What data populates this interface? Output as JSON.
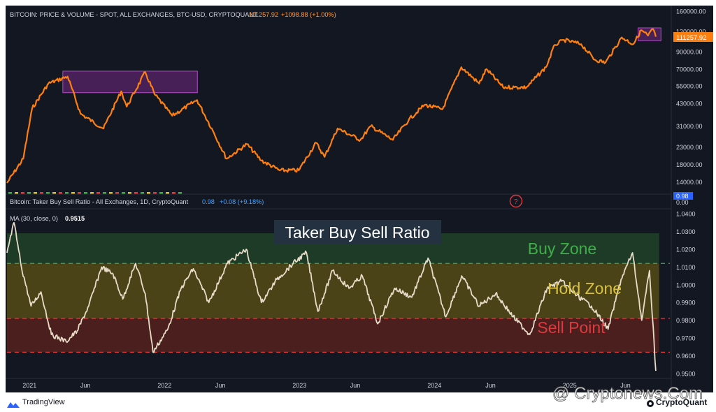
{
  "header_top": {
    "title": "BITCOIN: PRICE & VOLUME - SPOT, ALL EXCHANGES, BTC-USD, CRYPTOQUANT",
    "value": "111257.92",
    "change": "+1098.88 (+1.00%)"
  },
  "header_bottom": {
    "title": "Bitcoin: Taker Buy Sell Ratio - All Exchanges, 1D, CryptoQuant",
    "value": "0.98",
    "change": "+0.08 (+9.18%)"
  },
  "ma_label": "MA (30, close, 0)",
  "ma_value": "0.9515",
  "help_glyph": "?",
  "annotations": {
    "main_title": "Taker Buy Sell Ratio",
    "buy_zone": "Buy Zone",
    "hold_zone": "Hold Zone",
    "sell_point": "Sell Point"
  },
  "price_last_label": "111257.92",
  "ratio_last_label": "0.98",
  "ratio_zero_label": "0.00",
  "x_ticks": [
    "2021",
    "Jun",
    "2022",
    "Jun",
    "2023",
    "Jun",
    "2024",
    "Jun",
    "2025",
    "Jun"
  ],
  "footer": {
    "tradingview": "TradingView",
    "watermark": "@ Cryptonews.Com",
    "cryptoquant": "CryptoQuant"
  },
  "colors": {
    "price_line": "#ff7f0e",
    "ratio_line": "#e8dcc8",
    "buy_zone": "#1d3b26",
    "hold_zone": "#4a4318",
    "sell_zone": "#4a1f1d",
    "buy_text": "#3fae49",
    "hold_text": "#d9c23a",
    "sell_text": "#e0393e",
    "highlight": "#9c27b0"
  },
  "chart_data": [
    {
      "type": "line",
      "title": "BITCOIN: PRICE & VOLUME - SPOT, ALL EXCHANGES, BTC-USD, CRYPTOQUANT",
      "scale": "log",
      "ylim": [
        12000,
        160000
      ],
      "y_ticks": [
        160000,
        120000,
        90000,
        70000,
        55000,
        43000,
        31000,
        23000,
        18000,
        14000
      ],
      "y_tick_labels": [
        "160000.00",
        "120000.00",
        "90000.00",
        "70000.00",
        "55000.00",
        "43000.00",
        "31000.00",
        "23000.00",
        "18000.00",
        "14000.00"
      ],
      "x": [
        "2020-11-01",
        "2020-12-15",
        "2021-01-08",
        "2021-02-21",
        "2021-04-14",
        "2021-05-19",
        "2021-07-20",
        "2021-09-06",
        "2021-09-21",
        "2021-11-10",
        "2021-12-05",
        "2022-01-22",
        "2022-03-30",
        "2022-05-12",
        "2022-06-18",
        "2022-08-12",
        "2022-09-20",
        "2022-11-09",
        "2022-12-30",
        "2023-02-15",
        "2023-03-10",
        "2023-04-14",
        "2023-06-15",
        "2023-07-13",
        "2023-09-11",
        "2023-10-24",
        "2023-12-05",
        "2024-01-23",
        "2024-03-14",
        "2024-05-01",
        "2024-05-21",
        "2024-07-05",
        "2024-08-05",
        "2024-09-06",
        "2024-10-29",
        "2024-11-22",
        "2024-12-17",
        "2025-02-01",
        "2025-03-10",
        "2025-04-08",
        "2025-05-22",
        "2025-06-22",
        "2025-07-14",
        "2025-08-01",
        "2025-08-14",
        "2025-08-22"
      ],
      "values": [
        13800,
        19500,
        40000,
        57000,
        63000,
        37000,
        30000,
        51000,
        41000,
        67000,
        49000,
        36000,
        45000,
        29000,
        19500,
        24000,
        19000,
        16500,
        16500,
        24500,
        20000,
        30000,
        25500,
        31000,
        25500,
        34000,
        42000,
        39500,
        72000,
        57000,
        70000,
        54000,
        54000,
        54000,
        72000,
        99000,
        106000,
        100000,
        80000,
        77000,
        110000,
        100000,
        122000,
        113000,
        124000,
        111257.92
      ],
      "highlight_boxes": [
        {
          "x0": "2021-04-01",
          "x1": "2022-03-31",
          "y0": 50000,
          "y1": 68000
        },
        {
          "x0": "2025-07-05",
          "x1": "2025-09-05",
          "y0": 105000,
          "y1": 126000
        }
      ],
      "last_value": 111257.92
    },
    {
      "type": "line",
      "title": "Taker Buy Sell Ratio",
      "series_name": "MA (30, close, 0)",
      "ylim": [
        0.948,
        1.042
      ],
      "y_ticks": [
        1.04,
        1.03,
        1.02,
        1.01,
        1.0,
        0.99,
        0.98,
        0.97,
        0.96,
        0.95
      ],
      "y_tick_labels": [
        "1.0400",
        "1.0300",
        "1.0200",
        "1.0100",
        "1.0000",
        "0.9900",
        "0.9800",
        "0.9700",
        "0.9600",
        "0.9500"
      ],
      "x": [
        "2020-11-01",
        "2020-11-20",
        "2020-12-10",
        "2021-01-05",
        "2021-02-01",
        "2021-03-01",
        "2021-04-10",
        "2021-05-10",
        "2021-06-10",
        "2021-07-15",
        "2021-08-15",
        "2021-09-10",
        "2021-10-15",
        "2021-11-10",
        "2021-12-01",
        "2022-01-10",
        "2022-02-15",
        "2022-03-20",
        "2022-05-01",
        "2022-06-20",
        "2022-08-10",
        "2022-09-20",
        "2022-11-01",
        "2022-12-15",
        "2023-01-20",
        "2023-02-20",
        "2023-04-01",
        "2023-05-15",
        "2023-06-20",
        "2023-08-01",
        "2023-09-15",
        "2023-11-01",
        "2023-12-15",
        "2024-02-01",
        "2024-03-15",
        "2024-05-01",
        "2024-06-15",
        "2024-08-01",
        "2024-09-15",
        "2024-11-01",
        "2024-12-10",
        "2025-01-20",
        "2025-03-01",
        "2025-04-15",
        "2025-05-20",
        "2025-06-20",
        "2025-07-15",
        "2025-08-05",
        "2025-08-22"
      ],
      "values": [
        1.018,
        1.035,
        1.01,
        0.988,
        0.996,
        0.972,
        0.968,
        0.974,
        0.988,
        1.01,
        1.006,
        0.992,
        1.012,
        0.995,
        0.962,
        0.975,
        0.998,
        1.009,
        0.99,
        1.012,
        1.02,
        0.99,
        1.003,
        1.012,
        1.018,
        0.985,
        1.008,
        0.998,
        1.005,
        0.978,
        0.998,
        0.993,
        1.015,
        0.982,
        1.005,
        0.988,
        0.995,
        0.982,
        0.972,
        0.998,
        1.002,
        0.994,
        0.988,
        0.975,
        1.003,
        1.018,
        0.98,
        1.008,
        0.9515
      ],
      "zones": [
        {
          "name": "Buy Zone",
          "y0": 1.012,
          "y1": 1.029
        },
        {
          "name": "Hold Zone",
          "y0": 0.981,
          "y1": 1.012
        },
        {
          "name": "Sell Point",
          "y0": 0.962,
          "y1": 0.981
        }
      ],
      "dashed_lines": [
        1.012,
        0.981,
        0.962
      ],
      "last_value": 0.9515
    }
  ]
}
